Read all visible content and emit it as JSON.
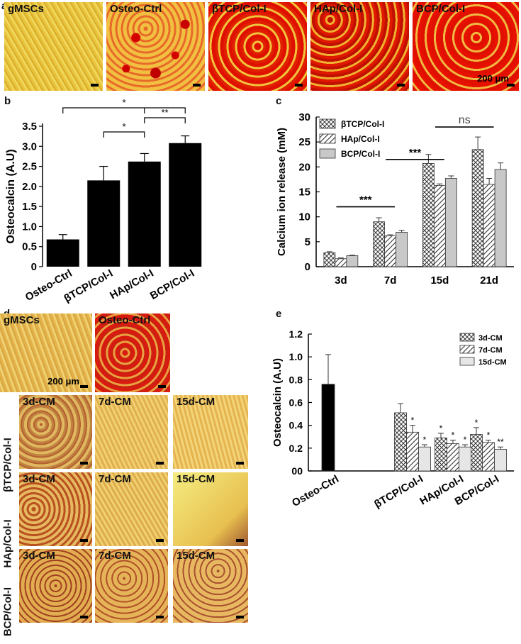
{
  "panels": {
    "a": "a",
    "b": "b",
    "c": "c",
    "d": "d",
    "e": "e"
  },
  "panel_a": {
    "images": [
      {
        "label": "gMSCs"
      },
      {
        "label": "Osteo-Ctrl"
      },
      {
        "label": "βTCP/Col-I"
      },
      {
        "label": "HAp/Col-I"
      },
      {
        "label": "BCP/Col-I"
      }
    ],
    "scale": "200 μm"
  },
  "panel_d": {
    "top_images": [
      {
        "label": "gMSCs"
      },
      {
        "label": "Osteo-Ctrl"
      }
    ],
    "scale": "200 μm",
    "rows": [
      {
        "row_label": "βTCP/Col-I",
        "cols": [
          "3d-CM",
          "7d-CM",
          "15d-CM"
        ]
      },
      {
        "row_label": "HAp/Col-I",
        "cols": [
          "3d-CM",
          "7d-CM",
          "15d-CM"
        ]
      },
      {
        "row_label": "BCP/Col-I",
        "cols": [
          "3d-CM",
          "7d-CM",
          "15d-CM"
        ]
      }
    ]
  },
  "chart_data": [
    {
      "id": "b",
      "type": "bar",
      "ylabel": "Osteocalcin (A.U)",
      "categories": [
        "Osteo-Ctrl",
        "βTCP/Col-I",
        "HAp/Col-I",
        "BCP/Col-I"
      ],
      "values": [
        0.68,
        2.15,
        2.62,
        3.08
      ],
      "errors": [
        0.12,
        0.35,
        0.2,
        0.18
      ],
      "ylim": [
        0,
        3.5
      ],
      "yticks": [
        "0",
        "0.5",
        "1.0",
        "1.5",
        "2.0",
        "2.5",
        "3.0",
        "3.5"
      ],
      "significance": [
        {
          "from": "Osteo-Ctrl",
          "to": "BCP/Col-I",
          "label": "*"
        },
        {
          "from": "βTCP/Col-I",
          "to": "HAp/Col-I",
          "label": "*"
        },
        {
          "from": "HAp/Col-I",
          "to": "BCP/Col-I",
          "label": "**"
        }
      ],
      "bar_color": "#000000"
    },
    {
      "id": "c",
      "type": "bar",
      "ylabel": "Calcium ion release (mM)",
      "categories": [
        "3d",
        "7d",
        "15d",
        "21d"
      ],
      "series": [
        {
          "name": "βTCP/Col-I",
          "pattern": "crosshatch",
          "values": [
            2.8,
            9.0,
            20.7,
            23.5
          ],
          "errors": [
            0.2,
            0.8,
            1.8,
            2.5
          ]
        },
        {
          "name": "HAp/Col-I",
          "pattern": "hatch",
          "values": [
            1.6,
            6.2,
            16.3,
            16.5
          ],
          "errors": [
            0.15,
            0.2,
            0.3,
            1.2
          ]
        },
        {
          "name": "BCP/Col-I",
          "pattern": "solid",
          "values": [
            2.2,
            6.9,
            17.7,
            19.5
          ],
          "errors": [
            0.1,
            0.4,
            0.5,
            1.3
          ]
        }
      ],
      "ylim": [
        0,
        30
      ],
      "yticks": [
        "0",
        "5",
        "10",
        "15",
        "20",
        "25",
        "30"
      ],
      "significance": [
        {
          "label": "***",
          "span": "3d-7d"
        },
        {
          "label": "***",
          "span": "7d-15d"
        },
        {
          "label": "ns",
          "span": "15d-21d"
        }
      ],
      "legend_position": "top-left"
    },
    {
      "id": "e",
      "type": "bar",
      "ylabel": "Osteocalcin (A.U)",
      "categories": [
        "Osteo-Ctrl",
        "βTCP/Col-I",
        "HAp/Col-I",
        "BCP/Col-I"
      ],
      "series": [
        {
          "name": "3d-CM",
          "pattern": "crosshatch",
          "values": [
            0.76,
            0.51,
            0.29,
            0.32
          ],
          "errors": [
            0.26,
            0.08,
            0.04,
            0.06
          ],
          "stars": [
            "",
            "",
            "*",
            "*"
          ]
        },
        {
          "name": "7d-CM",
          "pattern": "hatch",
          "values": [
            null,
            0.34,
            0.24,
            0.25
          ],
          "errors": [
            null,
            0.06,
            0.03,
            0.02
          ],
          "stars": [
            "",
            "*",
            "*",
            "*"
          ]
        },
        {
          "name": "15d-CM",
          "pattern": "light",
          "values": [
            null,
            0.21,
            0.21,
            0.19
          ],
          "errors": [
            null,
            0.02,
            0.02,
            0.02
          ],
          "stars": [
            "",
            "*",
            "*",
            "**"
          ]
        }
      ],
      "ctrl_color": "#000000",
      "ylim": [
        0,
        1.2
      ],
      "yticks": [
        "00",
        "0.2",
        "0.4",
        "0.6",
        "0.8",
        "1.0",
        "1.2"
      ],
      "legend_position": "top-right"
    }
  ]
}
